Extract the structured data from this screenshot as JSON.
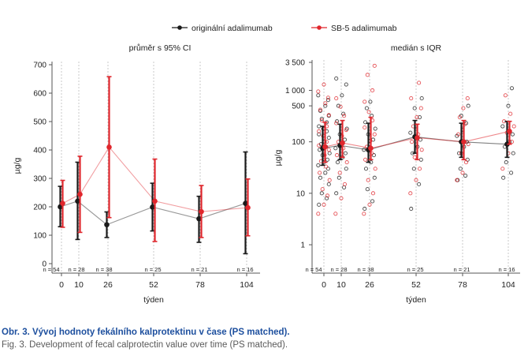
{
  "legend": [
    {
      "name": "originální adalimumab",
      "color": "#1a1a1a"
    },
    {
      "name": "SB-5 adalimumab",
      "color": "#e0262c"
    }
  ],
  "caption": {
    "title": "Obr. 3. Vývoj hodnoty fekálního kalprotektinu v čase (PS matched).",
    "english": "Fig. 3. Development of fecal calprotectin value over time (PS matched)."
  },
  "chart_data": [
    {
      "type": "line",
      "title": "průměr s 95% CI",
      "xlabel": "týden",
      "ylabel": "µg/g",
      "x": [
        0,
        10,
        26,
        52,
        78,
        104
      ],
      "xtick_labels": [
        "0",
        "10",
        "26",
        "52",
        "78",
        "104"
      ],
      "ylim": [
        0,
        700
      ],
      "yticks": [
        0,
        100,
        200,
        300,
        400,
        500,
        600,
        700
      ],
      "n_labels": [
        "n = 54",
        "n = 28",
        "n = 38",
        "n = 25",
        "n = 21",
        "n = 16"
      ],
      "series": [
        {
          "name": "originální adalimumab",
          "color": "#1a1a1a",
          "values": [
            200,
            220,
            137,
            199,
            158,
            212
          ],
          "ci_low": [
            130,
            85,
            92,
            115,
            75,
            35
          ],
          "ci_high": [
            272,
            357,
            182,
            283,
            237,
            393
          ]
        },
        {
          "name": "SB-5 adalimumab",
          "color": "#e0262c",
          "values": [
            212,
            244,
            410,
            220,
            183,
            197
          ],
          "ci_low": [
            128,
            110,
            162,
            78,
            92,
            98
          ],
          "ci_high": [
            293,
            378,
            658,
            368,
            275,
            298
          ]
        }
      ]
    },
    {
      "type": "scatter",
      "title": "medián s IQR",
      "xlabel": "týden",
      "ylabel": "µg/g",
      "yscale": "log",
      "x": [
        0,
        10,
        26,
        52,
        78,
        104
      ],
      "xtick_labels": [
        "0",
        "10",
        "26",
        "52",
        "78",
        "104"
      ],
      "ylim": [
        0.4,
        3500
      ],
      "yticks": [
        1,
        10,
        100,
        500,
        1000,
        3500
      ],
      "ytick_labels": [
        "1",
        "10",
        "100",
        "500",
        "1 000",
        "3 500"
      ],
      "n_labels": [
        "n = 54",
        "n = 28",
        "n = 38",
        "n = 25",
        "n = 21",
        "n = 16"
      ],
      "series": [
        {
          "name": "originální adalimumab",
          "color": "#1a1a1a",
          "median": [
            75,
            85,
            70,
            125,
            100,
            90
          ],
          "q1": [
            35,
            45,
            40,
            60,
            50,
            50
          ],
          "q3": [
            200,
            220,
            230,
            260,
            230,
            250
          ],
          "points": [
            [
              6,
              8,
              10,
              15,
              20,
              25,
              30,
              35,
              40,
              45,
              55,
              60,
              70,
              80,
              90,
              100,
              120,
              140,
              160,
              180,
              200,
              240,
              280,
              320,
              400,
              500,
              650,
              800
            ],
            [
              10,
              13,
              20,
              30,
              40,
              50,
              60,
              75,
              90,
              110,
              140,
              180,
              250,
              350,
              500,
              800,
              1300,
              1700
            ],
            [
              5,
              7,
              12,
              20,
              30,
              40,
              55,
              70,
              90,
              110,
              140,
              180,
              240,
              320,
              450,
              600
            ],
            [
              5,
              15,
              30,
              45,
              60,
              80,
              110,
              150,
              200,
              300,
              450,
              700
            ],
            [
              18,
              22,
              30,
              45,
              60,
              80,
              100,
              130,
              170,
              230,
              320,
              500
            ],
            [
              20,
              25,
              40,
              60,
              80,
              100,
              140,
              200,
              500,
              1100
            ]
          ]
        },
        {
          "name": "SB-5 adalimumab",
          "color": "#e0262c",
          "median": [
            80,
            95,
            75,
            120,
            100,
            160
          ],
          "q1": [
            40,
            50,
            45,
            45,
            45,
            90
          ],
          "q3": [
            240,
            260,
            300,
            220,
            260,
            250
          ],
          "points": [
            [
              4,
              6,
              9,
              12,
              18,
              25,
              33,
              42,
              55,
              70,
              85,
              100,
              130,
              160,
              200,
              260,
              330,
              420,
              560,
              720,
              950,
              1300
            ],
            [
              4,
              8,
              15,
              25,
              40,
              55,
              75,
              100,
              130,
              170,
              230,
              320,
              480,
              700
            ],
            [
              4,
              6,
              10,
              18,
              30,
              45,
              60,
              80,
              105,
              140,
              190,
              260,
              380,
              600,
              1000,
              2000,
              3000
            ],
            [
              10,
              18,
              30,
              50,
              70,
              100,
              140,
              200,
              300,
              450,
              700,
              1400
            ],
            [
              18,
              25,
              40,
              60,
              90,
              140,
              220,
              300,
              450,
              700
            ],
            [
              30,
              60,
              100,
              150,
              200,
              250,
              350,
              800
            ]
          ]
        }
      ]
    }
  ]
}
